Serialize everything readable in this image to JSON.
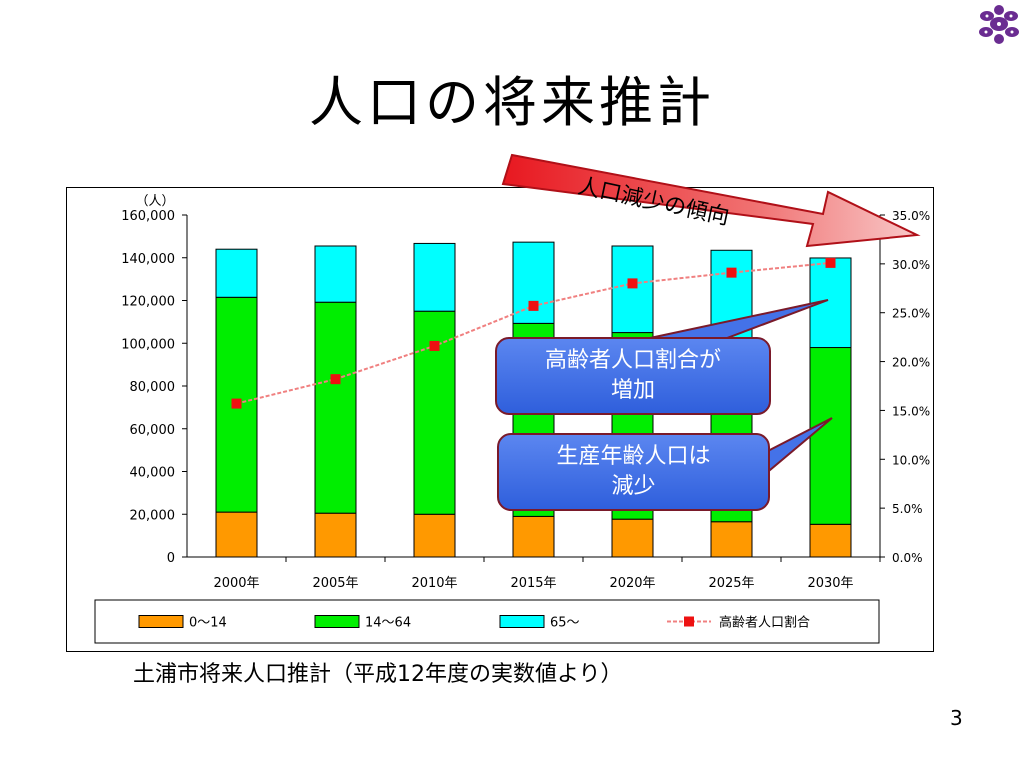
{
  "slide": {
    "title": "人口の将来推計",
    "caption": "土浦市将来人口推計（平成12年度の実数値より）",
    "page_number": "3"
  },
  "annotations": {
    "trend_arrow_label": "人口減少の傾向",
    "callout_aging_line1": "高齢者人口割合が",
    "callout_aging_line2": "増加",
    "callout_working_line1": "生産年齢人口は",
    "callout_working_line2": "減少"
  },
  "colors": {
    "age_0_14": "#FF9900",
    "age_14_64": "#00EE00",
    "age_65_plus": "#00FFFF",
    "elderly_ratio": "#EE1111",
    "callout_fill": "#4472E8",
    "arrow_fill": "#E8202A"
  },
  "chart_data": {
    "type": "bar",
    "stacked": true,
    "categories": [
      "2000年",
      "2005年",
      "2010年",
      "2015年",
      "2020年",
      "2025年",
      "2030年"
    ],
    "series": [
      {
        "name": "0〜14",
        "axis": "left",
        "values": [
          21000,
          20500,
          20000,
          19000,
          17700,
          16500,
          15300
        ]
      },
      {
        "name": "14〜64",
        "axis": "left",
        "values": [
          100500,
          98700,
          95000,
          90300,
          87300,
          84000,
          82700
        ]
      },
      {
        "name": "65〜",
        "axis": "left",
        "values": [
          22500,
          26300,
          31700,
          38000,
          40500,
          43000,
          41900
        ]
      },
      {
        "name": "高齢者人口割合",
        "type": "line",
        "axis": "right",
        "values": [
          15.7,
          18.2,
          21.6,
          25.7,
          28.0,
          29.1,
          30.1
        ]
      }
    ],
    "ylabel": "（人）",
    "ylim": [
      0,
      160000
    ],
    "yticks": [
      "0",
      "20,000",
      "40,000",
      "60,000",
      "80,000",
      "100,000",
      "120,000",
      "140,000",
      "160,000"
    ],
    "y2lim": [
      0,
      35
    ],
    "y2ticks": [
      "0.0%",
      "5.0%",
      "10.0%",
      "15.0%",
      "20.0%",
      "25.0%",
      "30.0%",
      "35.0%"
    ],
    "legend_position": "bottom",
    "grid": false
  }
}
